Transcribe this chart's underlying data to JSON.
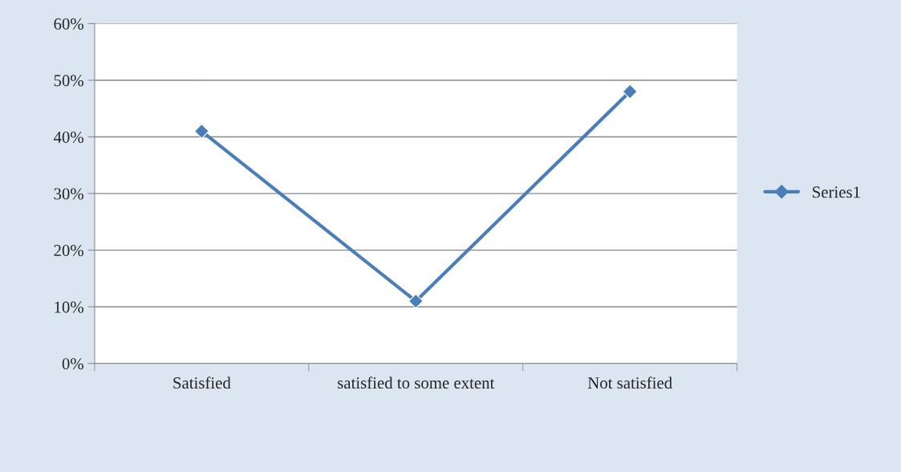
{
  "chart_data": {
    "type": "line",
    "categories": [
      "Satisfied",
      "satisfied to some extent",
      "Not satisfied"
    ],
    "series": [
      {
        "name": "Series1",
        "color": "#4a7ebb",
        "values": [
          41,
          11,
          48
        ]
      }
    ],
    "ylim": [
      0,
      60
    ],
    "yticks": [
      {
        "value": 0,
        "label": "0%"
      },
      {
        "value": 10,
        "label": "10%"
      },
      {
        "value": 20,
        "label": "20%"
      },
      {
        "value": 30,
        "label": "30%"
      },
      {
        "value": 40,
        "label": "40%"
      },
      {
        "value": 50,
        "label": "50%"
      },
      {
        "value": 60,
        "label": "60%"
      }
    ],
    "grid": "y",
    "legend": "right",
    "marker": "diamond",
    "line_style": "solid"
  }
}
